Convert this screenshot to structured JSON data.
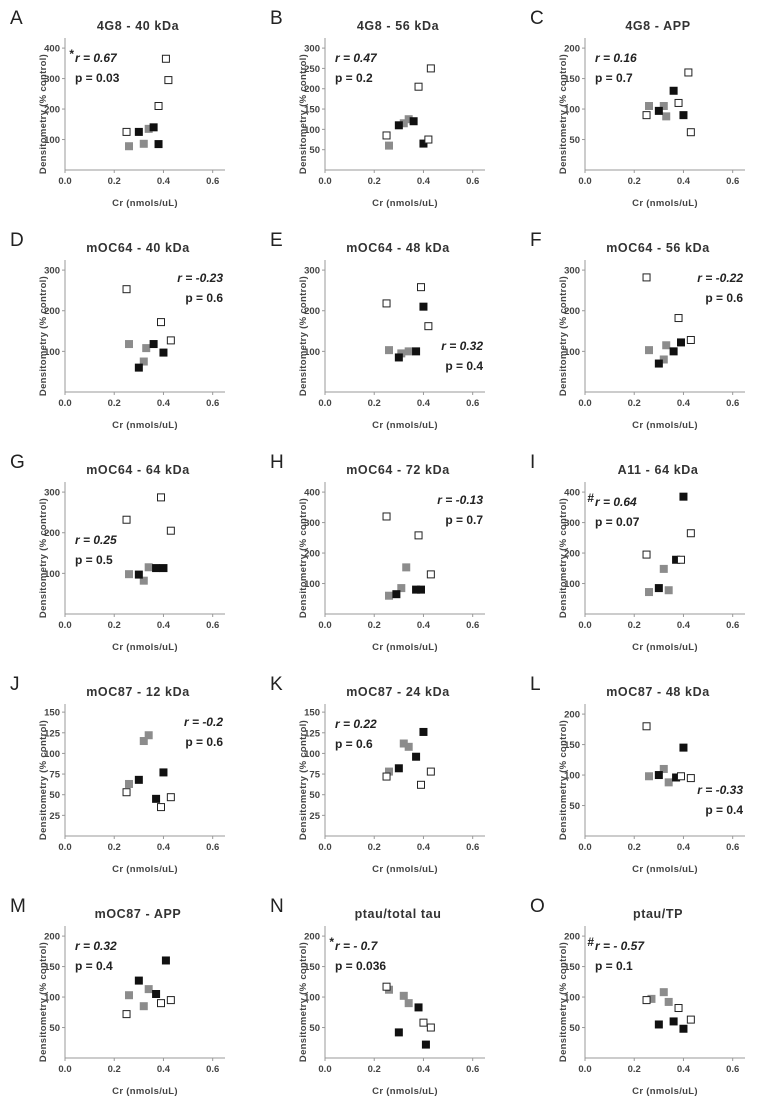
{
  "colors": {
    "gray": "#8c8c8c",
    "black": "#111111",
    "open_fill": "#ffffff",
    "open_stroke": "#222222",
    "axis": "#999999"
  },
  "chart_data": [
    {
      "letter": "A",
      "title": "4G8 - 40 kDa",
      "type": "scatter",
      "xlabel": "Cr (nmols/uL)",
      "ylabel": "Densitometry (% control)",
      "xlim": [
        0,
        0.65
      ],
      "xticks": [
        "0.0",
        "0.2",
        "0.4",
        "0.6"
      ],
      "xtick_values": [
        0,
        0.2,
        0.4,
        0.6
      ],
      "ylim": [
        0,
        420
      ],
      "yticks": [
        100,
        200,
        300,
        400
      ],
      "r_text": "r = 0.67",
      "p_text": "p = 0.03",
      "r_prefix": "*",
      "stat_position": "top-left",
      "series": [
        {
          "marker": "gray",
          "x": [
            0.26,
            0.32,
            0.34
          ],
          "y": [
            78,
            86,
            135
          ]
        },
        {
          "marker": "black",
          "x": [
            0.3,
            0.36,
            0.38
          ],
          "y": [
            125,
            140,
            85
          ]
        },
        {
          "marker": "open",
          "x": [
            0.25,
            0.38,
            0.41,
            0.42
          ],
          "y": [
            125,
            210,
            365,
            295
          ]
        }
      ]
    },
    {
      "letter": "B",
      "title": "4G8 - 56 kDa",
      "type": "scatter",
      "xlabel": "Cr (nmols/uL)",
      "ylabel": "Densitometry (% control)",
      "xlim": [
        0,
        0.65
      ],
      "xticks": [
        "0.0",
        "0.2",
        "0.4",
        "0.6"
      ],
      "xtick_values": [
        0,
        0.2,
        0.4,
        0.6
      ],
      "ylim": [
        0,
        315
      ],
      "yticks": [
        50,
        100,
        150,
        200,
        250,
        300
      ],
      "r_text": "r = 0.47",
      "p_text": "p = 0.2",
      "r_prefix": "",
      "stat_position": "top-left",
      "series": [
        {
          "marker": "gray",
          "x": [
            0.26,
            0.32,
            0.34
          ],
          "y": [
            60,
            115,
            125
          ]
        },
        {
          "marker": "black",
          "x": [
            0.3,
            0.36,
            0.4
          ],
          "y": [
            110,
            120,
            65
          ]
        },
        {
          "marker": "open",
          "x": [
            0.25,
            0.38,
            0.42,
            0.43
          ],
          "y": [
            85,
            205,
            75,
            250
          ]
        }
      ]
    },
    {
      "letter": "C",
      "title": "4G8 - APP",
      "type": "scatter",
      "xlabel": "Cr (nmols/uL)",
      "ylabel": "Densitometry (% control)",
      "xlim": [
        0,
        0.65
      ],
      "xticks": [
        "0.0",
        "0.2",
        "0.4",
        "0.6"
      ],
      "xtick_values": [
        0,
        0.2,
        0.4,
        0.6
      ],
      "ylim": [
        0,
        210
      ],
      "yticks": [
        50,
        100,
        150,
        200
      ],
      "r_text": "r = 0.16",
      "p_text": "p = 0.7",
      "r_prefix": "",
      "stat_position": "top-left",
      "series": [
        {
          "marker": "gray",
          "x": [
            0.26,
            0.32,
            0.33
          ],
          "y": [
            105,
            105,
            88
          ]
        },
        {
          "marker": "black",
          "x": [
            0.3,
            0.36,
            0.4
          ],
          "y": [
            97,
            130,
            90
          ]
        },
        {
          "marker": "open",
          "x": [
            0.25,
            0.38,
            0.42,
            0.43
          ],
          "y": [
            90,
            110,
            160,
            62
          ]
        }
      ]
    },
    {
      "letter": "D",
      "title": "mOC64 - 40 kDa",
      "type": "scatter",
      "xlabel": "Cr (nmols/uL)",
      "ylabel": "Densitometry (% control)",
      "xlim": [
        0,
        0.65
      ],
      "xticks": [
        "0.0",
        "0.2",
        "0.4",
        "0.6"
      ],
      "xtick_values": [
        0,
        0.2,
        0.4,
        0.6
      ],
      "ylim": [
        0,
        315
      ],
      "yticks": [
        100,
        200,
        300
      ],
      "r_text": "r = -0.23",
      "p_text": "p = 0.6",
      "r_prefix": "",
      "stat_position": "top-right",
      "series": [
        {
          "marker": "gray",
          "x": [
            0.26,
            0.32,
            0.33
          ],
          "y": [
            118,
            75,
            108
          ]
        },
        {
          "marker": "black",
          "x": [
            0.3,
            0.36,
            0.4
          ],
          "y": [
            60,
            118,
            97
          ]
        },
        {
          "marker": "open",
          "x": [
            0.25,
            0.39,
            0.43
          ],
          "y": [
            253,
            172,
            127
          ]
        }
      ]
    },
    {
      "letter": "E",
      "title": "mOC64 - 48 kDa",
      "type": "scatter",
      "xlabel": "Cr (nmols/uL)",
      "ylabel": "Densitometry (% control)",
      "xlim": [
        0,
        0.65
      ],
      "xticks": [
        "0.0",
        "0.2",
        "0.4",
        "0.6"
      ],
      "xtick_values": [
        0,
        0.2,
        0.4,
        0.6
      ],
      "ylim": [
        0,
        315
      ],
      "yticks": [
        100,
        200,
        300
      ],
      "r_text": "r = 0.32",
      "p_text": "p = 0.4",
      "r_prefix": "",
      "stat_position": "bottom-right",
      "series": [
        {
          "marker": "gray",
          "x": [
            0.26,
            0.31,
            0.34
          ],
          "y": [
            103,
            95,
            100
          ]
        },
        {
          "marker": "black",
          "x": [
            0.3,
            0.37,
            0.4
          ],
          "y": [
            85,
            100,
            210
          ]
        },
        {
          "marker": "open",
          "x": [
            0.25,
            0.39,
            0.42
          ],
          "y": [
            218,
            258,
            162
          ]
        }
      ]
    },
    {
      "letter": "F",
      "title": "mOC64 - 56 kDa",
      "type": "scatter",
      "xlabel": "Cr (nmols/uL)",
      "ylabel": "Densitometry (% control)",
      "xlim": [
        0,
        0.65
      ],
      "xticks": [
        "0.0",
        "0.2",
        "0.4",
        "0.6"
      ],
      "xtick_values": [
        0,
        0.2,
        0.4,
        0.6
      ],
      "ylim": [
        0,
        315
      ],
      "yticks": [
        100,
        200,
        300
      ],
      "r_text": "r = -0.22",
      "p_text": "p = 0.6",
      "r_prefix": "",
      "stat_position": "top-right",
      "series": [
        {
          "marker": "gray",
          "x": [
            0.26,
            0.32,
            0.33
          ],
          "y": [
            103,
            80,
            115
          ]
        },
        {
          "marker": "black",
          "x": [
            0.3,
            0.36,
            0.39
          ],
          "y": [
            70,
            100,
            122
          ]
        },
        {
          "marker": "open",
          "x": [
            0.25,
            0.38,
            0.43
          ],
          "y": [
            282,
            182,
            128
          ]
        }
      ]
    },
    {
      "letter": "G",
      "title": "mOC64 - 64 kDa",
      "type": "scatter",
      "xlabel": "Cr (nmols/uL)",
      "ylabel": "Densitometry (% control)",
      "xlim": [
        0,
        0.65
      ],
      "xticks": [
        "0.0",
        "0.2",
        "0.4",
        "0.6"
      ],
      "xtick_values": [
        0,
        0.2,
        0.4,
        0.6
      ],
      "ylim": [
        0,
        315
      ],
      "yticks": [
        100,
        200,
        300
      ],
      "r_text": "r = 0.25",
      "p_text": "p = 0.5",
      "r_prefix": "",
      "stat_position": "middle-left",
      "series": [
        {
          "marker": "gray",
          "x": [
            0.26,
            0.32,
            0.34
          ],
          "y": [
            98,
            82,
            115
          ]
        },
        {
          "marker": "black",
          "x": [
            0.3,
            0.37,
            0.4
          ],
          "y": [
            97,
            113,
            113
          ]
        },
        {
          "marker": "open",
          "x": [
            0.25,
            0.39,
            0.43
          ],
          "y": [
            232,
            287,
            205
          ]
        }
      ]
    },
    {
      "letter": "H",
      "title": "mOC64 - 72 kDa",
      "type": "scatter",
      "xlabel": "Cr (nmols/uL)",
      "ylabel": "Densitometry (% control)",
      "xlim": [
        0,
        0.65
      ],
      "xticks": [
        "0.0",
        "0.2",
        "0.4",
        "0.6"
      ],
      "xtick_values": [
        0,
        0.2,
        0.4,
        0.6
      ],
      "ylim": [
        0,
        420
      ],
      "yticks": [
        100,
        200,
        300,
        400
      ],
      "r_text": "r = -0.13",
      "p_text": "p = 0.7",
      "r_prefix": "",
      "stat_position": "top-right",
      "series": [
        {
          "marker": "gray",
          "x": [
            0.26,
            0.31,
            0.33
          ],
          "y": [
            60,
            85,
            153
          ]
        },
        {
          "marker": "black",
          "x": [
            0.29,
            0.37,
            0.39
          ],
          "y": [
            65,
            80,
            80
          ]
        },
        {
          "marker": "open",
          "x": [
            0.25,
            0.38,
            0.43
          ],
          "y": [
            320,
            258,
            130
          ]
        }
      ]
    },
    {
      "letter": "I",
      "title": "A11 - 64 kDa",
      "type": "scatter",
      "xlabel": "Cr (nmols/uL)",
      "ylabel": "Densitometry (% control)",
      "xlim": [
        0,
        0.65
      ],
      "xticks": [
        "0.0",
        "0.2",
        "0.4",
        "0.6"
      ],
      "xtick_values": [
        0,
        0.2,
        0.4,
        0.6
      ],
      "ylim": [
        0,
        420
      ],
      "yticks": [
        100,
        200,
        300,
        400
      ],
      "r_text": "r = 0.64",
      "p_text": "p = 0.07",
      "r_prefix": "#",
      "stat_position": "top-left",
      "series": [
        {
          "marker": "gray",
          "x": [
            0.26,
            0.32,
            0.34
          ],
          "y": [
            72,
            148,
            78
          ]
        },
        {
          "marker": "black",
          "x": [
            0.3,
            0.37,
            0.4
          ],
          "y": [
            85,
            178,
            385
          ]
        },
        {
          "marker": "open",
          "x": [
            0.25,
            0.39,
            0.43
          ],
          "y": [
            195,
            178,
            265
          ]
        }
      ]
    },
    {
      "letter": "J",
      "title": "mOC87 - 12 kDa",
      "type": "scatter",
      "xlabel": "Cr (nmols/uL)",
      "ylabel": "Densitometry (% control)",
      "xlim": [
        0,
        0.65
      ],
      "xticks": [
        "0.0",
        "0.2",
        "0.4",
        "0.6"
      ],
      "xtick_values": [
        0,
        0.2,
        0.4,
        0.6
      ],
      "ylim": [
        0,
        155
      ],
      "yticks": [
        25,
        50,
        75,
        100,
        125,
        150
      ],
      "r_text": "r = -0.2",
      "p_text": "p = 0.6",
      "r_prefix": "",
      "stat_position": "top-right",
      "series": [
        {
          "marker": "gray",
          "x": [
            0.26,
            0.32,
            0.34
          ],
          "y": [
            63,
            115,
            122
          ]
        },
        {
          "marker": "black",
          "x": [
            0.3,
            0.37,
            0.4
          ],
          "y": [
            68,
            45,
            77
          ]
        },
        {
          "marker": "open",
          "x": [
            0.25,
            0.39,
            0.43
          ],
          "y": [
            53,
            35,
            47
          ]
        }
      ]
    },
    {
      "letter": "K",
      "title": "mOC87 - 24 kDa",
      "type": "scatter",
      "xlabel": "Cr (nmols/uL)",
      "ylabel": "Densitometry (% control)",
      "xlim": [
        0,
        0.65
      ],
      "xticks": [
        "0.0",
        "0.2",
        "0.4",
        "0.6"
      ],
      "xtick_values": [
        0,
        0.2,
        0.4,
        0.6
      ],
      "ylim": [
        0,
        155
      ],
      "yticks": [
        25,
        50,
        75,
        100,
        125,
        150
      ],
      "r_text": "r = 0.22",
      "p_text": "p = 0.6",
      "r_prefix": "",
      "stat_position": "top-left",
      "series": [
        {
          "marker": "gray",
          "x": [
            0.26,
            0.32,
            0.34
          ],
          "y": [
            78,
            112,
            108
          ]
        },
        {
          "marker": "black",
          "x": [
            0.3,
            0.37,
            0.4
          ],
          "y": [
            82,
            96,
            126
          ]
        },
        {
          "marker": "open",
          "x": [
            0.25,
            0.39,
            0.43
          ],
          "y": [
            72,
            62,
            78
          ]
        }
      ]
    },
    {
      "letter": "L",
      "title": "mOC87 - 48 kDa",
      "type": "scatter",
      "xlabel": "Cr (nmols/uL)",
      "ylabel": "Densitometry (% control)",
      "xlim": [
        0,
        0.65
      ],
      "xticks": [
        "0.0",
        "0.2",
        "0.4",
        "0.6"
      ],
      "xtick_values": [
        0,
        0.2,
        0.4,
        0.6
      ],
      "ylim": [
        0,
        210
      ],
      "yticks": [
        50,
        100,
        150,
        200
      ],
      "r_text": "r = -0.33",
      "p_text": "p = 0.4",
      "r_prefix": "",
      "stat_position": "bottom-right",
      "series": [
        {
          "marker": "gray",
          "x": [
            0.26,
            0.32,
            0.34
          ],
          "y": [
            98,
            110,
            88
          ]
        },
        {
          "marker": "black",
          "x": [
            0.3,
            0.37,
            0.4
          ],
          "y": [
            100,
            96,
            145
          ]
        },
        {
          "marker": "open",
          "x": [
            0.25,
            0.39,
            0.43
          ],
          "y": [
            180,
            98,
            95
          ]
        }
      ]
    },
    {
      "letter": "M",
      "title": "mOC87 - APP",
      "type": "scatter",
      "xlabel": "Cr (nmols/uL)",
      "ylabel": "Densitometry (% control)",
      "xlim": [
        0,
        0.65
      ],
      "xticks": [
        "0.0",
        "0.2",
        "0.4",
        "0.6"
      ],
      "xtick_values": [
        0,
        0.2,
        0.4,
        0.6
      ],
      "ylim": [
        0,
        210
      ],
      "yticks": [
        50,
        100,
        150,
        200
      ],
      "r_text": "r = 0.32",
      "p_text": "p = 0.4",
      "r_prefix": "",
      "stat_position": "top-left",
      "series": [
        {
          "marker": "gray",
          "x": [
            0.26,
            0.32,
            0.34
          ],
          "y": [
            103,
            85,
            113
          ]
        },
        {
          "marker": "black",
          "x": [
            0.3,
            0.37,
            0.41
          ],
          "y": [
            127,
            105,
            160
          ]
        },
        {
          "marker": "open",
          "x": [
            0.25,
            0.39,
            0.43
          ],
          "y": [
            72,
            90,
            95
          ]
        }
      ]
    },
    {
      "letter": "N",
      "title": "ptau/total tau",
      "type": "scatter",
      "xlabel": "Cr (nmols/uL)",
      "ylabel": "Densitometry (% control)",
      "xlim": [
        0,
        0.65
      ],
      "xticks": [
        "0.0",
        "0.2",
        "0.4",
        "0.6"
      ],
      "xtick_values": [
        0,
        0.2,
        0.4,
        0.6
      ],
      "ylim": [
        0,
        210
      ],
      "yticks": [
        50,
        100,
        150,
        200
      ],
      "r_text": "r = - 0.7",
      "p_text": "p = 0.036",
      "r_prefix": "*",
      "stat_position": "top-left",
      "series": [
        {
          "marker": "gray",
          "x": [
            0.26,
            0.32,
            0.34
          ],
          "y": [
            112,
            102,
            90
          ]
        },
        {
          "marker": "black",
          "x": [
            0.3,
            0.38,
            0.41
          ],
          "y": [
            42,
            83,
            22
          ]
        },
        {
          "marker": "open",
          "x": [
            0.25,
            0.4,
            0.43
          ],
          "y": [
            117,
            58,
            50
          ]
        }
      ]
    },
    {
      "letter": "O",
      "title": "ptau/TP",
      "type": "scatter",
      "xlabel": "Cr (nmols/uL)",
      "ylabel": "Densitometry (% control)",
      "xlim": [
        0,
        0.65
      ],
      "xticks": [
        "0.0",
        "0.2",
        "0.4",
        "0.6"
      ],
      "xtick_values": [
        0,
        0.2,
        0.4,
        0.6
      ],
      "ylim": [
        0,
        210
      ],
      "yticks": [
        50,
        100,
        150,
        200
      ],
      "r_text": "r = - 0.57",
      "p_text": "p = 0.1",
      "r_prefix": "#",
      "stat_position": "top-left",
      "series": [
        {
          "marker": "gray",
          "x": [
            0.27,
            0.32,
            0.34
          ],
          "y": [
            97,
            108,
            92
          ]
        },
        {
          "marker": "black",
          "x": [
            0.3,
            0.36,
            0.4
          ],
          "y": [
            55,
            60,
            48
          ]
        },
        {
          "marker": "open",
          "x": [
            0.25,
            0.38,
            0.43
          ],
          "y": [
            95,
            82,
            63
          ]
        }
      ]
    }
  ]
}
